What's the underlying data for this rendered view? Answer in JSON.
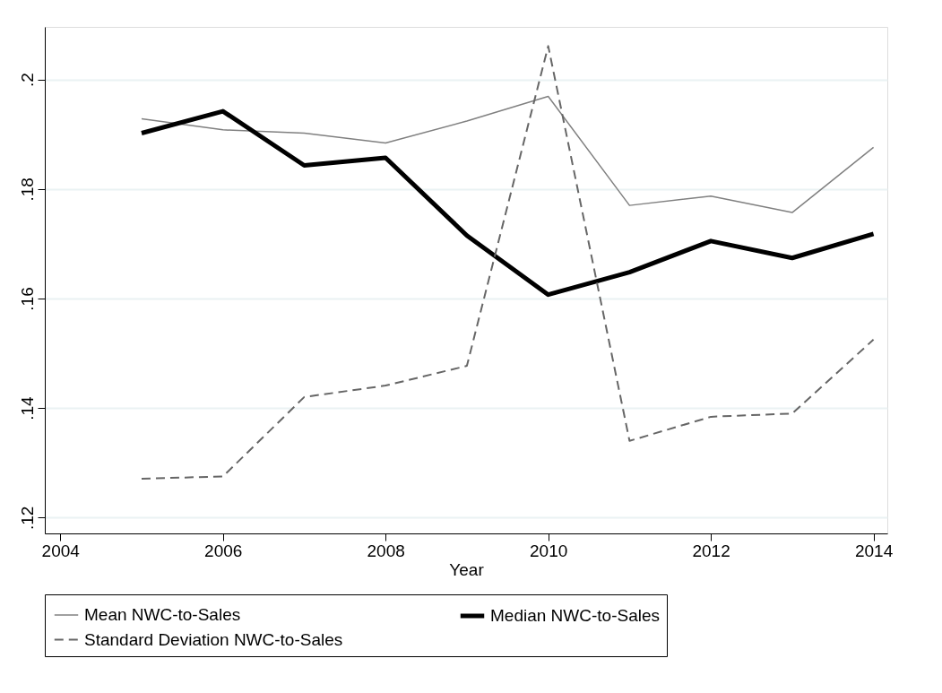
{
  "chart_data": {
    "type": "line",
    "xlabel": "Year",
    "x": [
      2005,
      2006,
      2007,
      2008,
      2009,
      2010,
      2011,
      2012,
      2013,
      2014
    ],
    "series": [
      {
        "name": "Mean NWC-to-Sales",
        "color": "#808080",
        "line_style": "solid",
        "values": [
          0.1928,
          0.1908,
          0.1902,
          0.1884,
          0.1924,
          0.1969,
          0.177,
          0.1787,
          0.1757,
          0.1876
        ]
      },
      {
        "name": "Median NWC-to-Sales",
        "color": "#000000",
        "line_style": "solid",
        "values": [
          0.1902,
          0.1942,
          0.1843,
          0.1857,
          0.1715,
          0.1607,
          0.1648,
          0.1705,
          0.1674,
          0.1718
        ]
      },
      {
        "name": "Standard Deviation NWC-to-Sales",
        "color": "#666666",
        "line_style": "dashed",
        "values": [
          0.1271,
          0.1275,
          0.142,
          0.1441,
          0.1477,
          0.2061,
          0.134,
          0.1384,
          0.139,
          0.1525
        ]
      }
    ],
    "xlim": [
      2003.81,
      2014.17
    ],
    "xticks": [
      2004,
      2006,
      2008,
      2010,
      2012,
      2014
    ],
    "ylim": [
      0.1171,
      0.2096
    ],
    "yticks": [
      {
        "value": 0.12,
        "label": ".12"
      },
      {
        "value": 0.14,
        "label": ".14"
      },
      {
        "value": 0.16,
        "label": ".16"
      },
      {
        "value": 0.18,
        "label": ".18"
      },
      {
        "value": 0.2,
        "label": ".2"
      }
    ],
    "grid": "y",
    "legend": "bottom",
    "marker": "none"
  }
}
